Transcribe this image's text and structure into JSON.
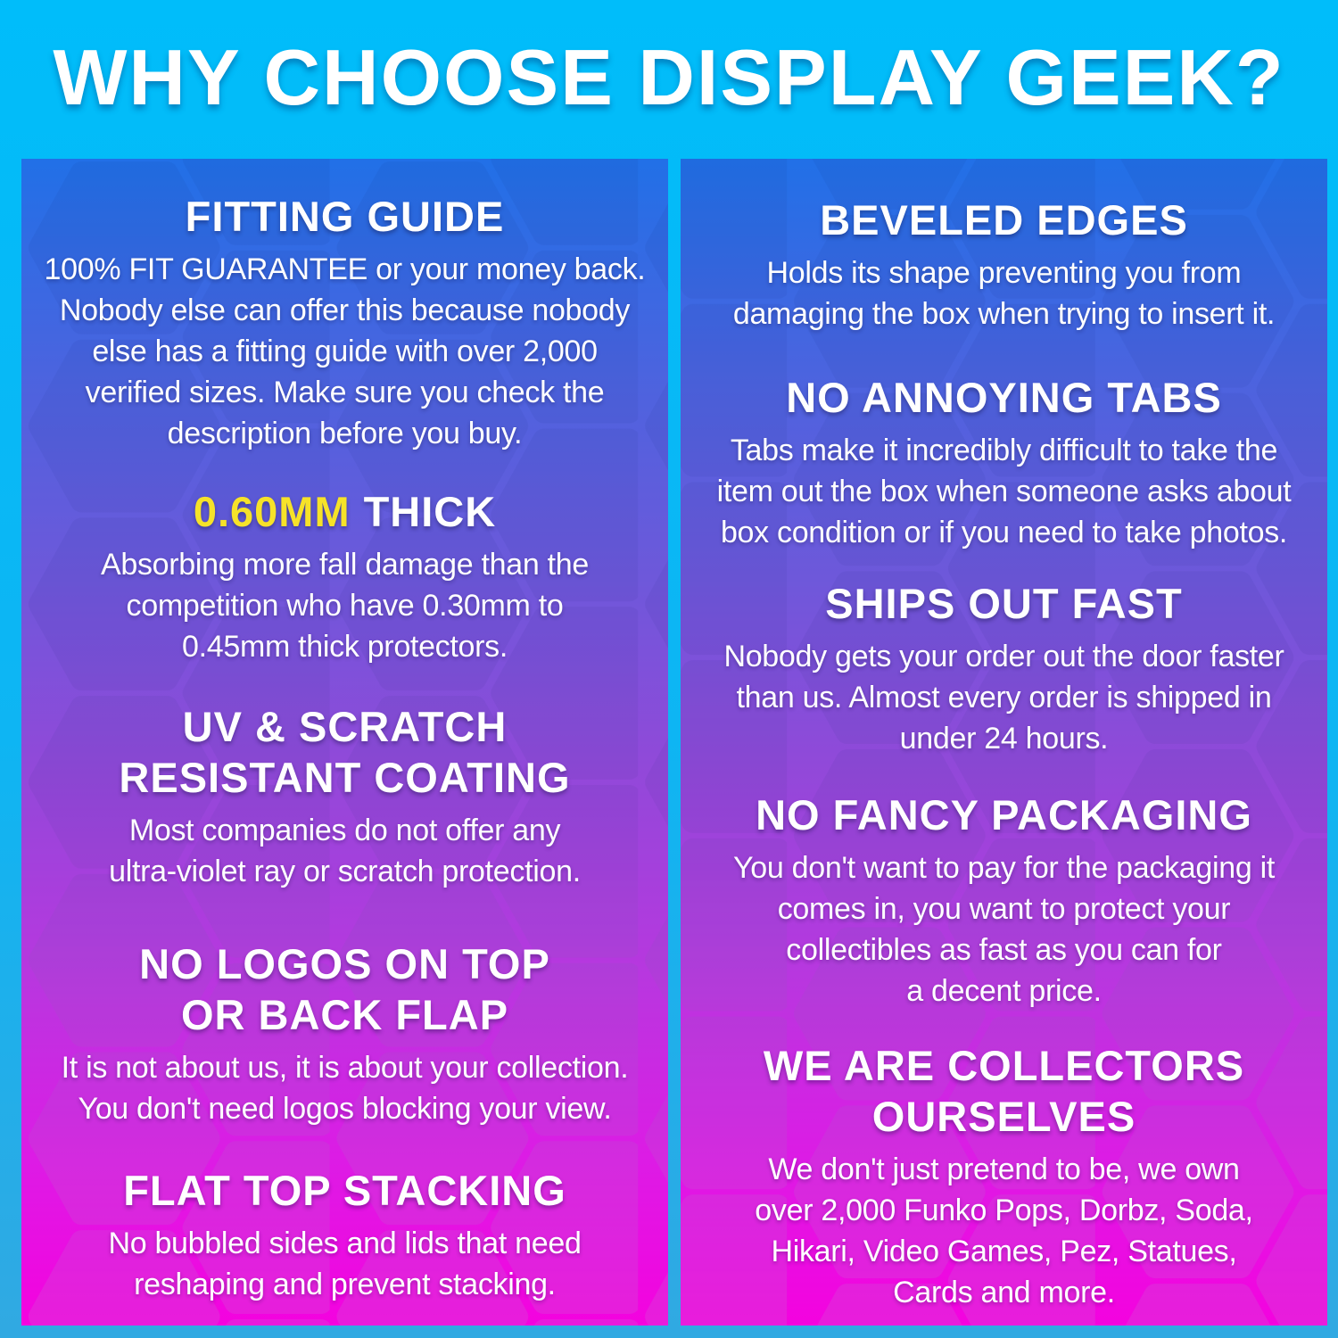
{
  "title": "WHY CHOOSE DISPLAY GEEK?",
  "colors": {
    "background_cyan": "#0EB5F3",
    "panel_gradient_top": "#2170E7",
    "panel_gradient_middle": "#9149D9",
    "panel_gradient_bottom": "#F402DF",
    "heading_text": "#FFFFFF",
    "body_text": "#FFFFFF",
    "accent_yellow": "#F6E229"
  },
  "left": {
    "sections": [
      {
        "heading_lines": [
          "FITTING GUIDE"
        ],
        "body_lines": [
          "100% FIT GUARANTEE or your money back.",
          "Nobody else can offer this because nobody",
          "else has a fitting guide with over 2,000",
          "verified sizes. Make sure you check the",
          "description before you buy."
        ]
      },
      {
        "heading_accent": "0.60MM",
        "heading_rest": "THICK",
        "body_lines": [
          "Absorbing more fall damage than the",
          "competition who have 0.30mm to",
          "0.45mm thick protectors."
        ]
      },
      {
        "heading_lines": [
          "UV & SCRATCH",
          "RESISTANT COATING"
        ],
        "body_lines": [
          "Most companies do not offer any",
          "ultra-violet ray or scratch protection."
        ]
      },
      {
        "heading_lines": [
          "NO LOGOS ON TOP",
          "OR BACK FLAP"
        ],
        "body_lines": [
          "It is not about us, it is about your collection.",
          "You don't need logos blocking your view."
        ]
      },
      {
        "heading_lines": [
          "FLAT TOP STACKING"
        ],
        "body_lines": [
          "No bubbled sides and lids that need",
          "reshaping and prevent stacking."
        ]
      }
    ]
  },
  "right": {
    "sections": [
      {
        "heading_lines": [
          "BEVELED EDGES"
        ],
        "body_lines": [
          "Holds its shape preventing you from",
          "damaging the box when trying to insert it."
        ]
      },
      {
        "heading_lines": [
          "NO ANNOYING TABS"
        ],
        "body_lines": [
          "Tabs make it incredibly difficult to take the",
          "item out the box when someone asks about",
          "box condition or if you need to take photos."
        ]
      },
      {
        "heading_lines": [
          "SHIPS OUT FAST"
        ],
        "body_lines": [
          "Nobody gets your order out the door faster",
          "than us. Almost every order is shipped in",
          "under 24 hours."
        ]
      },
      {
        "heading_lines": [
          "NO FANCY PACKAGING"
        ],
        "body_lines": [
          "You don't want to pay for the packaging it",
          "comes in, you want to protect your",
          "collectibles as fast as you can for",
          "a decent price."
        ]
      },
      {
        "heading_lines": [
          "WE ARE COLLECTORS",
          "OURSELVES"
        ],
        "body_lines": [
          "We don't just pretend to be, we own",
          "over 2,000 Funko Pops, Dorbz, Soda,",
          "Hikari, Video Games, Pez, Statues,",
          "Cards and more."
        ]
      }
    ]
  }
}
